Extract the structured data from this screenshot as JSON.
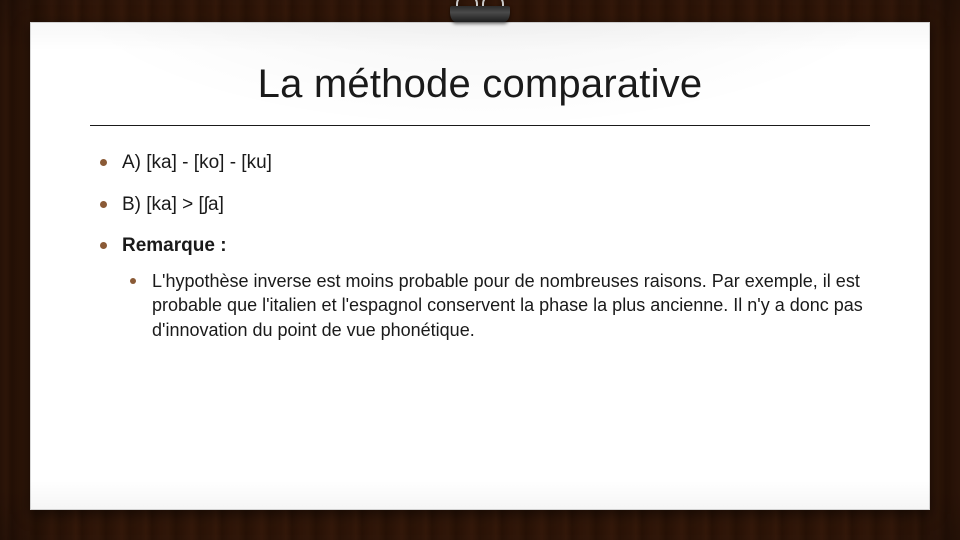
{
  "colors": {
    "bullet_top": "#8a5a36",
    "bullet_sub": "#8a5a36",
    "text": "#1a1a1a",
    "paper": "#ffffff"
  },
  "title": "La méthode comparative",
  "bullets": [
    {
      "text": "A) [ka] - [ko] - [ku]"
    },
    {
      "text": "B) [ka] > [ʃa]"
    },
    {
      "text": "Remarque :",
      "bold": true,
      "sub": [
        {
          "text": "L'hypothèse inverse est moins probable pour de nombreuses raisons. Par exemple, il est probable que l'italien et l'espagnol conservent la phase la plus ancienne. Il n'y a donc pas d'innovation du point de vue phonétique."
        }
      ]
    }
  ]
}
